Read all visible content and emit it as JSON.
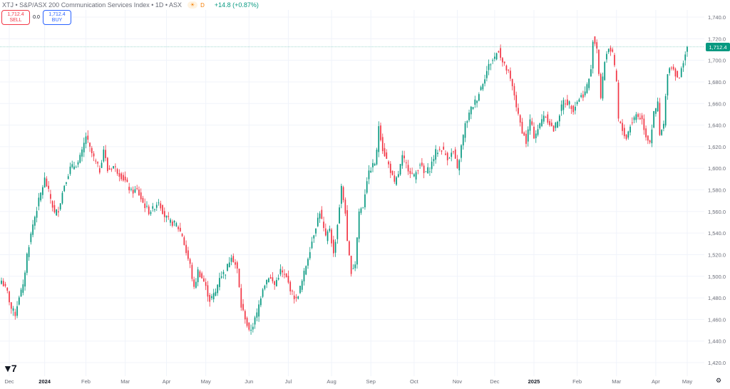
{
  "header": {
    "title": "XTJ • S&P/ASX 200 Communication Services Index • 1D • ASX",
    "flag_icon": "sun-flag-icon",
    "d_label": "D",
    "change": "+14.8 (+0.87%)"
  },
  "trade": {
    "sell_price": "1,712.4",
    "sell_label": "SELL",
    "spread": "0.0",
    "buy_price": "1,712.4",
    "buy_label": "BUY"
  },
  "last_price_label": "1,712.4",
  "colors": {
    "up": "#089981",
    "down": "#f23645",
    "grid": "#f0f3fa",
    "axis_text": "#6a6d78",
    "price_line": "#089981"
  },
  "chart_data": {
    "type": "candlestick",
    "ylim": [
      1410,
      1748
    ],
    "y_ticks": [
      1420,
      1440,
      1460,
      1480,
      1500,
      1520,
      1540,
      1560,
      1580,
      1600,
      1620,
      1640,
      1660,
      1680,
      1700,
      1720,
      1740
    ],
    "y_tick_labels": [
      "1,420.0",
      "1,440.0",
      "1,460.0",
      "1,480.0",
      "1,500.0",
      "1,520.0",
      "1,540.0",
      "1,560.0",
      "1,580.0",
      "1,600.0",
      "1,620.0",
      "1,640.0",
      "1,660.0",
      "1,680.0",
      "1,700.0",
      "1,720.0",
      "1,740.0"
    ],
    "x_labels": [
      "Dec",
      "2024",
      "Feb",
      "Mar",
      "Apr",
      "May",
      "Jun",
      "Jul",
      "Aug",
      "Sep",
      "Oct",
      "Nov",
      "Dec",
      "2025",
      "Feb",
      "Mar",
      "Apr",
      "May"
    ],
    "x_label_index": [
      4,
      22,
      43,
      63,
      84,
      104,
      126,
      146,
      168,
      188,
      210,
      232,
      251,
      271,
      293,
      313,
      333,
      349
    ],
    "last_price": 1712.4,
    "close_anchors": [
      [
        0,
        1496
      ],
      [
        3,
        1485
      ],
      [
        5,
        1470
      ],
      [
        7,
        1465
      ],
      [
        9,
        1482
      ],
      [
        11,
        1490
      ],
      [
        13,
        1520
      ],
      [
        16,
        1548
      ],
      [
        19,
        1570
      ],
      [
        22,
        1590
      ],
      [
        25,
        1572
      ],
      [
        27,
        1558
      ],
      [
        29,
        1562
      ],
      [
        32,
        1585
      ],
      [
        35,
        1600
      ],
      [
        39,
        1605
      ],
      [
        41,
        1615
      ],
      [
        43,
        1630
      ],
      [
        45,
        1618
      ],
      [
        48,
        1605
      ],
      [
        50,
        1598
      ],
      [
        52,
        1618
      ],
      [
        54,
        1598
      ],
      [
        57,
        1602
      ],
      [
        60,
        1595
      ],
      [
        63,
        1588
      ],
      [
        66,
        1578
      ],
      [
        69,
        1580
      ],
      [
        72,
        1568
      ],
      [
        75,
        1560
      ],
      [
        77,
        1562
      ],
      [
        80,
        1570
      ],
      [
        83,
        1556
      ],
      [
        86,
        1550
      ],
      [
        89,
        1548
      ],
      [
        92,
        1538
      ],
      [
        94,
        1522
      ],
      [
        96,
        1510
      ],
      [
        98,
        1488
      ],
      [
        100,
        1505
      ],
      [
        103,
        1495
      ],
      [
        106,
        1478
      ],
      [
        109,
        1485
      ],
      [
        111,
        1500
      ],
      [
        114,
        1504
      ],
      [
        117,
        1520
      ],
      [
        120,
        1506
      ],
      [
        122,
        1472
      ],
      [
        124,
        1462
      ],
      [
        126,
        1448
      ],
      [
        128,
        1455
      ],
      [
        130,
        1465
      ],
      [
        133,
        1490
      ],
      [
        136,
        1500
      ],
      [
        139,
        1492
      ],
      [
        142,
        1505
      ],
      [
        145,
        1498
      ],
      [
        148,
        1484
      ],
      [
        150,
        1478
      ],
      [
        153,
        1495
      ],
      [
        156,
        1518
      ],
      [
        159,
        1540
      ],
      [
        162,
        1560
      ],
      [
        165,
        1535
      ],
      [
        167,
        1545
      ],
      [
        169,
        1520
      ],
      [
        171,
        1548
      ],
      [
        173,
        1582
      ],
      [
        175,
        1560
      ],
      [
        176,
        1530
      ],
      [
        178,
        1505
      ],
      [
        180,
        1512
      ],
      [
        182,
        1560
      ],
      [
        184,
        1565
      ],
      [
        186,
        1590
      ],
      [
        188,
        1600
      ],
      [
        190,
        1605
      ],
      [
        191,
        1615
      ],
      [
        192,
        1640
      ],
      [
        194,
        1618
      ],
      [
        196,
        1608
      ],
      [
        198,
        1598
      ],
      [
        200,
        1585
      ],
      [
        202,
        1595
      ],
      [
        204,
        1610
      ],
      [
        207,
        1600
      ],
      [
        210,
        1592
      ],
      [
        213,
        1605
      ],
      [
        215,
        1595
      ],
      [
        218,
        1600
      ],
      [
        221,
        1615
      ],
      [
        224,
        1618
      ],
      [
        227,
        1610
      ],
      [
        230,
        1615
      ],
      [
        232,
        1598
      ],
      [
        234,
        1620
      ],
      [
        236,
        1640
      ],
      [
        239,
        1655
      ],
      [
        242,
        1665
      ],
      [
        245,
        1680
      ],
      [
        248,
        1695
      ],
      [
        251,
        1703
      ],
      [
        253,
        1710
      ],
      [
        255,
        1698
      ],
      [
        258,
        1688
      ],
      [
        261,
        1668
      ],
      [
        263,
        1648
      ],
      [
        265,
        1635
      ],
      [
        267,
        1624
      ],
      [
        269,
        1645
      ],
      [
        271,
        1630
      ],
      [
        274,
        1640
      ],
      [
        276,
        1650
      ],
      [
        278,
        1645
      ],
      [
        281,
        1635
      ],
      [
        283,
        1645
      ],
      [
        286,
        1662
      ],
      [
        289,
        1660
      ],
      [
        291,
        1655
      ],
      [
        294,
        1665
      ],
      [
        297,
        1670
      ],
      [
        300,
        1690
      ],
      [
        301,
        1720
      ],
      [
        303,
        1712
      ],
      [
        305,
        1665
      ],
      [
        307,
        1700
      ],
      [
        309,
        1712
      ],
      [
        311,
        1705
      ],
      [
        313,
        1680
      ],
      [
        314,
        1645
      ],
      [
        316,
        1635
      ],
      [
        318,
        1628
      ],
      [
        320,
        1640
      ],
      [
        323,
        1650
      ],
      [
        326,
        1645
      ],
      [
        328,
        1630
      ],
      [
        330,
        1625
      ],
      [
        332,
        1650
      ],
      [
        334,
        1660
      ],
      [
        335,
        1630
      ],
      [
        337,
        1640
      ],
      [
        339,
        1690
      ],
      [
        341,
        1695
      ],
      [
        343,
        1688
      ],
      [
        345,
        1682
      ],
      [
        347,
        1700
      ],
      [
        349,
        1712.4
      ]
    ]
  }
}
